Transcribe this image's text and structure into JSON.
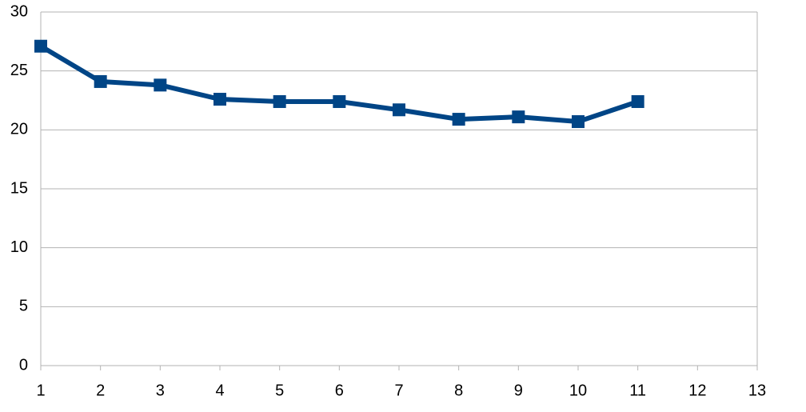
{
  "chart_data": {
    "type": "line",
    "x": [
      1,
      2,
      3,
      4,
      5,
      6,
      7,
      8,
      9,
      10,
      11
    ],
    "values": [
      27.1,
      24.1,
      23.8,
      22.6,
      22.4,
      22.4,
      21.7,
      20.9,
      21.1,
      20.7,
      22.4
    ],
    "color": "#004586",
    "xlim": [
      1,
      13
    ],
    "xticks": [
      1,
      2,
      3,
      4,
      5,
      6,
      7,
      8,
      9,
      10,
      11,
      12,
      13
    ],
    "ylim": [
      0,
      30
    ],
    "yticks": [
      0,
      5,
      10,
      15,
      20,
      25,
      30
    ],
    "grid": true,
    "marker": "square"
  }
}
